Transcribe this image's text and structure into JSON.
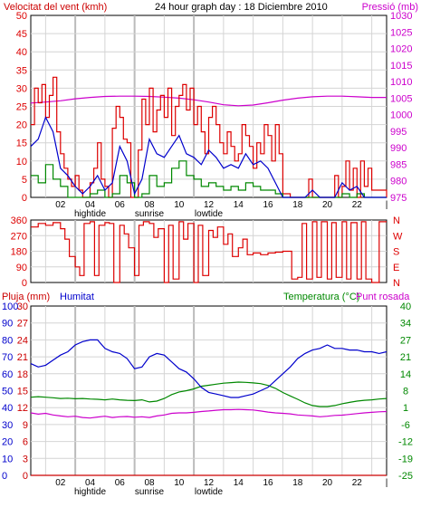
{
  "header": {
    "title": "24 hour graph day : 18 Diciembre 2010",
    "wind_label": "Velocitat del vent (kmh)",
    "pressure_label": "Pressió (mb)"
  },
  "colors": {
    "wind_gust": "#dd0000",
    "wind_avg": "#0000cc",
    "wind_min": "#008800",
    "pressure": "#cc00cc",
    "humidity": "#0000cc",
    "temperature": "#008800",
    "dewpoint": "#cc00cc",
    "rain": "#cc0000",
    "grid": "#d4d4d4",
    "frame": "#000000"
  },
  "x_axis": {
    "hours": [
      "02",
      "04",
      "06",
      "08",
      "10",
      "12",
      "14",
      "16",
      "18",
      "20",
      "22"
    ],
    "end_tick": "|",
    "markers": [
      {
        "label": "hightide",
        "hour": 4
      },
      {
        "label": "sunrise",
        "hour": 8
      },
      {
        "label": "lowtide",
        "hour": 12
      }
    ]
  },
  "chart_data": [
    {
      "type": "line",
      "name": "wind-pressure",
      "xlim": [
        0,
        24
      ],
      "ylim_left": [
        0,
        50
      ],
      "ylim_right": [
        975,
        1030
      ],
      "y_ticks_left": [
        "0",
        "5",
        "10",
        "15",
        "20",
        "25",
        "30",
        "35",
        "40",
        "45",
        "50"
      ],
      "y_ticks_right": [
        "975",
        "980",
        "985",
        "990",
        "995",
        "1000",
        "1005",
        "1010",
        "1015",
        "1020",
        "1025",
        "1030"
      ],
      "pressure": {
        "x": [
          0,
          1,
          2,
          3,
          4,
          5,
          6,
          7,
          8,
          9,
          10,
          11,
          12,
          13,
          14,
          15,
          16,
          17,
          18,
          19,
          20,
          21,
          22,
          23,
          24
        ],
        "y": [
          1003.5,
          1003.8,
          1004.2,
          1004.8,
          1005.2,
          1005.5,
          1005.6,
          1005.6,
          1005.5,
          1005.3,
          1005,
          1004.5,
          1003.8,
          1003,
          1002.7,
          1002.9,
          1003.6,
          1004.4,
          1005,
          1005.4,
          1005.6,
          1005.6,
          1005.4,
          1005.2,
          1005.2
        ]
      },
      "gust": {
        "x": [
          0,
          0.25,
          0.5,
          0.75,
          1,
          1.25,
          1.5,
          1.75,
          2,
          2.25,
          2.5,
          2.75,
          3,
          3.25,
          3.5,
          3.75,
          4,
          4.25,
          4.5,
          4.75,
          5,
          5.25,
          5.5,
          5.75,
          6,
          6.25,
          6.5,
          6.75,
          7,
          7.25,
          7.5,
          7.75,
          8,
          8.25,
          8.5,
          8.75,
          9,
          9.25,
          9.5,
          9.75,
          10,
          10.25,
          10.5,
          10.75,
          11,
          11.25,
          11.5,
          11.75,
          12,
          12.25,
          12.5,
          12.75,
          13,
          13.25,
          13.5,
          13.75,
          14,
          14.25,
          14.5,
          14.75,
          15,
          15.25,
          15.5,
          15.75,
          16,
          16.25,
          16.5,
          16.75,
          17,
          17.5,
          18,
          18.5,
          18.75,
          19,
          19.5,
          20,
          20.5,
          20.75,
          21,
          21.25,
          21.5,
          21.75,
          22,
          22.25,
          22.5,
          22.75,
          23,
          24
        ],
        "y": [
          20,
          30,
          26,
          31,
          22,
          28,
          33,
          18,
          12,
          8,
          5,
          3,
          6,
          2,
          0,
          0,
          4,
          8,
          15,
          5,
          3,
          0,
          19,
          25,
          22,
          16,
          15,
          0,
          0,
          13,
          27,
          20,
          30,
          18,
          24,
          28,
          22,
          30,
          17,
          25,
          28,
          31,
          24,
          30,
          20,
          25,
          18,
          12,
          22,
          25,
          20,
          15,
          12,
          18,
          14,
          10,
          12,
          20,
          17,
          14,
          8,
          15,
          12,
          20,
          17,
          10,
          20,
          12,
          1,
          0,
          0,
          0,
          5,
          0,
          0,
          0,
          6,
          0,
          3,
          10,
          2,
          8,
          0,
          10,
          3,
          8,
          2,
          0
        ]
      },
      "average": {
        "x": [
          0,
          0.5,
          1,
          1.5,
          2,
          2.5,
          3,
          3.5,
          4,
          4.5,
          5,
          5.5,
          6,
          6.5,
          7,
          7.5,
          8,
          8.5,
          9,
          9.5,
          10,
          10.5,
          11,
          11.5,
          12,
          12.5,
          13,
          13.5,
          14,
          14.5,
          15,
          15.5,
          16,
          16.5,
          17,
          17.5,
          18,
          18.5,
          19,
          19.5,
          20,
          20.5,
          21,
          21.5,
          22,
          22.5,
          23,
          24
        ],
        "y": [
          14,
          16,
          22,
          18,
          8,
          6,
          3,
          1,
          3,
          6,
          2,
          4,
          14,
          10,
          1,
          5,
          16,
          12,
          11,
          14,
          17,
          12,
          11,
          9,
          13,
          11,
          8,
          9,
          8,
          12,
          9,
          10,
          8,
          4,
          0,
          0,
          0,
          0,
          2,
          0,
          0,
          0,
          4,
          2,
          3,
          0,
          0,
          0
        ]
      },
      "minimum": {
        "x": [
          0,
          0.5,
          1,
          1.5,
          2,
          2.5,
          3,
          3.5,
          4,
          4.5,
          5,
          5.5,
          6,
          6.5,
          7,
          7.5,
          8,
          8.5,
          9,
          9.5,
          10,
          10.5,
          11,
          11.5,
          12,
          12.5,
          13,
          13.5,
          14,
          14.5,
          15,
          15.5,
          16,
          16.5,
          17,
          18,
          19,
          20,
          21,
          21.5,
          22,
          22.5,
          23,
          24
        ],
        "y": [
          6,
          4,
          9,
          5,
          3,
          0,
          0,
          0,
          1,
          2,
          0,
          1,
          6,
          4,
          0,
          1,
          6,
          3,
          4,
          8,
          10,
          6,
          5,
          3,
          4,
          3,
          2,
          3,
          2,
          4,
          3,
          2,
          2,
          1,
          0,
          0,
          0,
          0,
          1,
          0,
          1,
          0,
          0,
          0
        ]
      }
    },
    {
      "type": "line",
      "name": "wind-direction",
      "xlim": [
        0,
        24
      ],
      "ylim_left": [
        0,
        360
      ],
      "y_ticks_left": [
        "0",
        "90",
        "180",
        "270",
        "360"
      ],
      "y_ticks_right": [
        "N",
        "E",
        "S",
        "W",
        "N"
      ],
      "direction": {
        "x": [
          0,
          0.5,
          1,
          1.5,
          2,
          2.3,
          2.6,
          3,
          3.3,
          3.6,
          4,
          4.3,
          4.6,
          5,
          5.3,
          5.6,
          6,
          6.3,
          6.6,
          7,
          7.3,
          7.6,
          8,
          8.3,
          8.6,
          9,
          9.3,
          9.6,
          10,
          10.3,
          10.6,
          11,
          11.3,
          11.6,
          12,
          12.3,
          12.6,
          13,
          13.3,
          13.6,
          14,
          14.3,
          14.6,
          15,
          15.5,
          16,
          16.5,
          17,
          17.3,
          17.6,
          18,
          18.3,
          18.6,
          19,
          19.3,
          19.6,
          20,
          20.3,
          20.6,
          21,
          21.3,
          21.6,
          22,
          22.3,
          22.6,
          23,
          23.5,
          24
        ],
        "y": [
          320,
          340,
          330,
          345,
          310,
          250,
          150,
          90,
          40,
          340,
          350,
          40,
          330,
          345,
          340,
          0,
          330,
          280,
          200,
          40,
          330,
          350,
          340,
          260,
          310,
          0,
          330,
          20,
          350,
          250,
          340,
          0,
          330,
          40,
          300,
          260,
          320,
          220,
          280,
          150,
          200,
          250,
          160,
          170,
          160,
          170,
          175,
          180,
          180,
          20,
          30,
          340,
          20,
          350,
          30,
          350,
          20,
          345,
          30,
          350,
          20,
          345,
          20,
          350,
          20,
          0,
          350,
          350
        ]
      }
    },
    {
      "type": "line",
      "name": "rain-humidity-temperature",
      "xlim": [
        0,
        24
      ],
      "ylim_rain": [
        0,
        30
      ],
      "ylim_humidity": [
        0,
        100
      ],
      "ylim_temperature": [
        -25,
        40
      ],
      "series_labels": {
        "rain": "Pluja (mm)",
        "humidity": "Humitat",
        "temperature": "Temperatura (°C)",
        "dewpoint": "Punt rosada"
      },
      "y_ticks_rain": [
        "0",
        "3",
        "6",
        "9",
        "12",
        "15",
        "18",
        "21",
        "24",
        "27",
        "30"
      ],
      "y_ticks_humidity": [
        "0",
        "10",
        "20",
        "30",
        "40",
        "50",
        "60",
        "70",
        "80",
        "90",
        "100"
      ],
      "y_ticks_temperature": [
        "-25",
        "-19",
        "-12",
        "-6",
        "1",
        "8",
        "14",
        "21",
        "27",
        "34",
        "40"
      ],
      "humidity": {
        "x": [
          0,
          0.5,
          1,
          1.5,
          2,
          2.5,
          3,
          3.5,
          4,
          4.5,
          5,
          5.5,
          6,
          6.5,
          7,
          7.5,
          8,
          8.5,
          9,
          9.5,
          10,
          10.5,
          11,
          11.5,
          12,
          12.5,
          13,
          13.5,
          14,
          14.5,
          15,
          15.5,
          16,
          16.5,
          17,
          17.5,
          18,
          18.5,
          19,
          19.5,
          20,
          20.5,
          21,
          21.5,
          22,
          22.5,
          23,
          23.5,
          24
        ],
        "y": [
          66,
          64,
          65,
          68,
          71,
          73,
          77,
          79,
          80,
          80,
          75,
          73,
          72,
          69,
          63,
          64,
          70,
          72,
          71,
          67,
          63,
          61,
          57,
          52,
          49,
          48,
          47,
          46,
          46,
          47,
          48,
          50,
          52,
          56,
          60,
          64,
          69,
          72,
          74,
          75,
          77,
          75,
          75,
          74,
          74,
          73,
          73,
          72,
          73
        ]
      },
      "temperature": {
        "x": [
          0,
          0.5,
          1,
          1.5,
          2,
          2.5,
          3,
          3.5,
          4,
          4.5,
          5,
          5.5,
          6,
          6.5,
          7,
          7.5,
          8,
          8.5,
          9,
          9.5,
          10,
          10.5,
          11,
          11.5,
          12,
          12.5,
          13,
          13.5,
          14,
          14.5,
          15,
          15.5,
          16,
          16.5,
          17,
          17.5,
          18,
          18.5,
          19,
          19.5,
          20,
          20.5,
          21,
          21.5,
          22,
          22.5,
          23,
          23.5,
          24
        ],
        "y": [
          5,
          5.2,
          5,
          4.8,
          4.5,
          4.6,
          4.4,
          4.5,
          4.3,
          4.2,
          4,
          4.3,
          4,
          3.8,
          3.7,
          4,
          3.2,
          3.5,
          4.5,
          6,
          7,
          7.5,
          8.2,
          9.2,
          9.6,
          10,
          10.4,
          10.6,
          10.8,
          10.7,
          10.5,
          10.2,
          9.5,
          8.4,
          6.8,
          5.5,
          4.2,
          2.8,
          1.8,
          1.4,
          1.4,
          1.8,
          2.5,
          3,
          3.5,
          3.8,
          4,
          4.3,
          4.5
        ]
      },
      "dewpoint": {
        "x": [
          0,
          0.5,
          1,
          1.5,
          2,
          2.5,
          3,
          3.5,
          4,
          4.5,
          5,
          5.5,
          6,
          6.5,
          7,
          7.5,
          8,
          8.5,
          9,
          9.5,
          10,
          10.5,
          11,
          11.5,
          12,
          12.5,
          13,
          13.5,
          14,
          14.5,
          15,
          15.5,
          16,
          16.5,
          17,
          17.5,
          18,
          18.5,
          19,
          19.5,
          20,
          20.5,
          21,
          21.5,
          22,
          22.5,
          23,
          23.5,
          24
        ],
        "y": [
          -1,
          -1.5,
          -1.2,
          -1.8,
          -2.2,
          -2.5,
          -2.3,
          -2.8,
          -3,
          -2.6,
          -2.3,
          -2.8,
          -2.5,
          -2.4,
          -2.7,
          -2.5,
          -2.8,
          -2.2,
          -1.8,
          -1.2,
          -1,
          -1,
          -0.8,
          -0.5,
          -0.3,
          0,
          0.2,
          0.2,
          0.3,
          0.2,
          0.1,
          -0.3,
          -0.7,
          -1,
          -1.2,
          -1.4,
          -1.8,
          -2,
          -2.2,
          -2.5,
          -2.3,
          -2,
          -1.9,
          -1.6,
          -1.3,
          -1,
          -0.8,
          -0.6,
          -0.5
        ]
      },
      "rain": {
        "x": [
          0,
          24
        ],
        "y": [
          0,
          0
        ]
      }
    }
  ]
}
